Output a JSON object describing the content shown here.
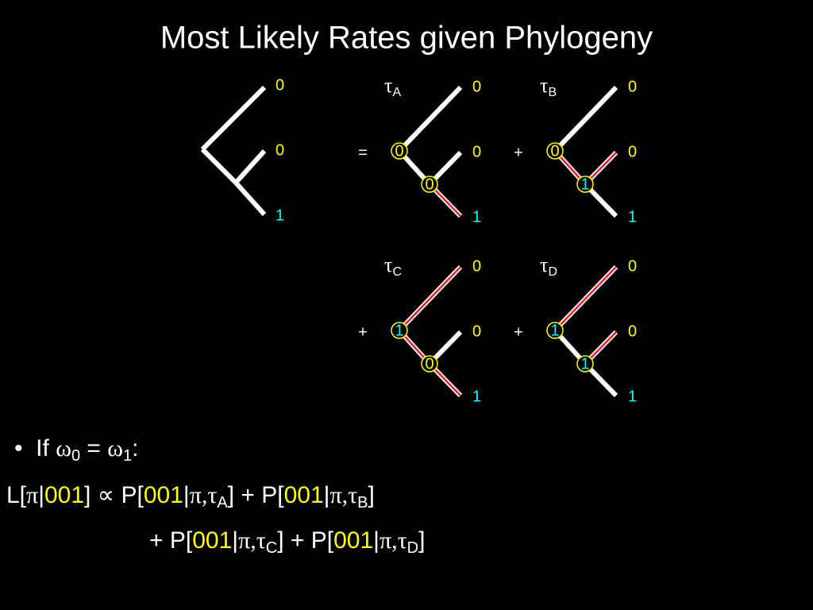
{
  "title": "Most Likely Rates given Phylogeny",
  "main_tree": {
    "leaves": [
      "0",
      "0",
      "1"
    ]
  },
  "trees": [
    {
      "tau": "τ",
      "sub": "A",
      "connector": "=",
      "root": "0",
      "inner": "0",
      "leaves": [
        "0",
        "0",
        "1"
      ]
    },
    {
      "tau": "τ",
      "sub": "B",
      "connector": "+",
      "root": "0",
      "inner": "1",
      "leaves": [
        "0",
        "0",
        "1"
      ]
    },
    {
      "tau": "τ",
      "sub": "C",
      "connector": "+",
      "root": "1",
      "inner": "0",
      "leaves": [
        "0",
        "0",
        "1"
      ]
    },
    {
      "tau": "τ",
      "sub": "D",
      "connector": "+",
      "root": "1",
      "inner": "1",
      "leaves": [
        "0",
        "0",
        "1"
      ]
    }
  ],
  "equations": [
    [
      {
        "text": "•  If "
      },
      {
        "text": "ω",
        "style": "g"
      },
      {
        "text": "0",
        "style": "sub"
      },
      {
        "text": " = "
      },
      {
        "text": "ω",
        "style": "g"
      },
      {
        "text": "1",
        "style": "sub"
      },
      {
        "text": ":"
      }
    ],
    [
      {
        "text": "L["
      },
      {
        "text": "π",
        "style": "g"
      },
      {
        "text": "|"
      },
      {
        "text": "001",
        "style": "y"
      },
      {
        "text": "] ∝ P["
      },
      {
        "text": "001",
        "style": "y"
      },
      {
        "text": "|"
      },
      {
        "text": "π,τ",
        "style": "g"
      },
      {
        "text": "A",
        "style": "sub"
      },
      {
        "text": "] + P["
      },
      {
        "text": "001",
        "style": "y"
      },
      {
        "text": "|"
      },
      {
        "text": "π,τ",
        "style": "g"
      },
      {
        "text": "B",
        "style": "sub"
      },
      {
        "text": "]"
      }
    ],
    [
      {
        "text": "+ P["
      },
      {
        "text": "001",
        "style": "y"
      },
      {
        "text": "|"
      },
      {
        "text": "π,τ",
        "style": "g"
      },
      {
        "text": "C",
        "style": "sub"
      },
      {
        "text": "] + P["
      },
      {
        "text": "001",
        "style": "y"
      },
      {
        "text": "|"
      },
      {
        "text": "π,τ",
        "style": "g"
      },
      {
        "text": "D",
        "style": "sub"
      },
      {
        "text": "]"
      }
    ]
  ]
}
